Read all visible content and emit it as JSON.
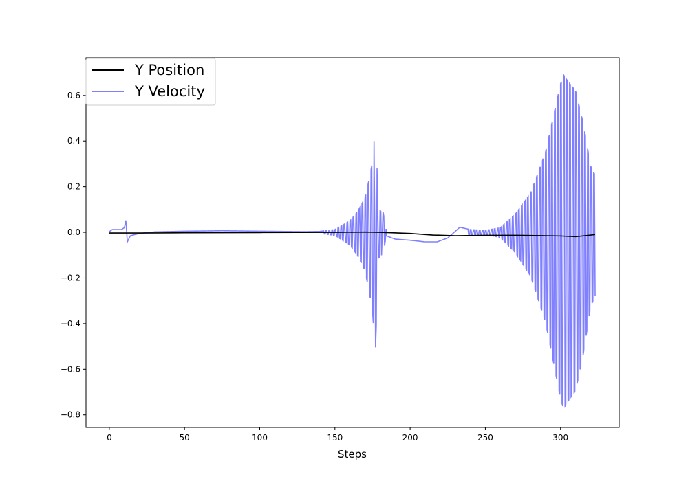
{
  "chart_data": {
    "type": "line",
    "title": "",
    "xlabel": "Steps",
    "ylabel": "",
    "xlim": [
      -15.5,
      339
    ],
    "ylim": [
      -0.855,
      0.765
    ],
    "grid": false,
    "legend_placement": "top-left",
    "x_ticks": [
      0,
      50,
      100,
      150,
      200,
      250,
      300
    ],
    "x_tick_labels": [
      "0",
      "50",
      "100",
      "150",
      "200",
      "250",
      "300"
    ],
    "y_ticks": [
      -0.8,
      -0.6,
      -0.4,
      -0.2,
      0.0,
      0.2,
      0.4,
      0.6
    ],
    "y_tick_labels": [
      "−0.8",
      "−0.6",
      "−0.4",
      "−0.2",
      "0.0",
      "0.2",
      "0.4",
      "0.6"
    ],
    "series": [
      {
        "name": "Y Position",
        "color": "#000000",
        "points": [
          [
            0,
            -0.003
          ],
          [
            20,
            -0.003
          ],
          [
            50,
            -0.002
          ],
          [
            100,
            -0.001
          ],
          [
            150,
            0.0
          ],
          [
            170,
            0.001
          ],
          [
            180,
            0.0
          ],
          [
            200,
            -0.005
          ],
          [
            215,
            -0.012
          ],
          [
            230,
            -0.015
          ],
          [
            250,
            -0.013
          ],
          [
            270,
            -0.013
          ],
          [
            290,
            -0.015
          ],
          [
            300,
            -0.016
          ],
          [
            310,
            -0.019
          ],
          [
            316,
            -0.015
          ],
          [
            323,
            -0.01
          ]
        ]
      },
      {
        "name": "Y Velocity",
        "color": "#8080ff",
        "envelope": [
          [
            0,
            0.003
          ],
          [
            2,
            0.012
          ],
          [
            8,
            0.012
          ],
          [
            10,
            0.02
          ],
          [
            11,
            0.052
          ],
          [
            12,
            -0.042
          ],
          [
            14,
            -0.015
          ],
          [
            20,
            -0.005
          ],
          [
            30,
            0.002
          ],
          [
            50,
            0.005
          ],
          [
            75,
            0.007
          ],
          [
            100,
            0.005
          ],
          [
            130,
            0.003
          ],
          [
            140,
            0.004
          ],
          [
            150,
            0.012
          ],
          [
            160,
            0.05
          ],
          [
            165,
            0.09
          ],
          [
            170,
            0.15
          ],
          [
            173,
            0.24
          ],
          [
            175,
            0.31
          ],
          [
            176,
            0.4
          ],
          [
            177,
            -0.45
          ],
          [
            178,
            -0.28
          ],
          [
            179,
            0.1
          ],
          [
            181,
            0.09
          ],
          [
            182,
            -0.09
          ],
          [
            184,
            -0.015
          ],
          [
            190,
            -0.03
          ],
          [
            200,
            -0.035
          ],
          [
            210,
            -0.042
          ],
          [
            218,
            -0.042
          ],
          [
            225,
            -0.025
          ],
          [
            233,
            0.022
          ],
          [
            240,
            0.012
          ],
          [
            250,
            0.008
          ],
          [
            260,
            0.02
          ],
          [
            270,
            0.08
          ],
          [
            280,
            0.17
          ],
          [
            290,
            0.35
          ],
          [
            295,
            0.5
          ],
          [
            300,
            0.65
          ],
          [
            302,
            0.69
          ],
          [
            305,
            0.66
          ],
          [
            310,
            0.62
          ],
          [
            315,
            0.48
          ],
          [
            320,
            0.29
          ],
          [
            323,
            0.25
          ]
        ]
      }
    ]
  }
}
